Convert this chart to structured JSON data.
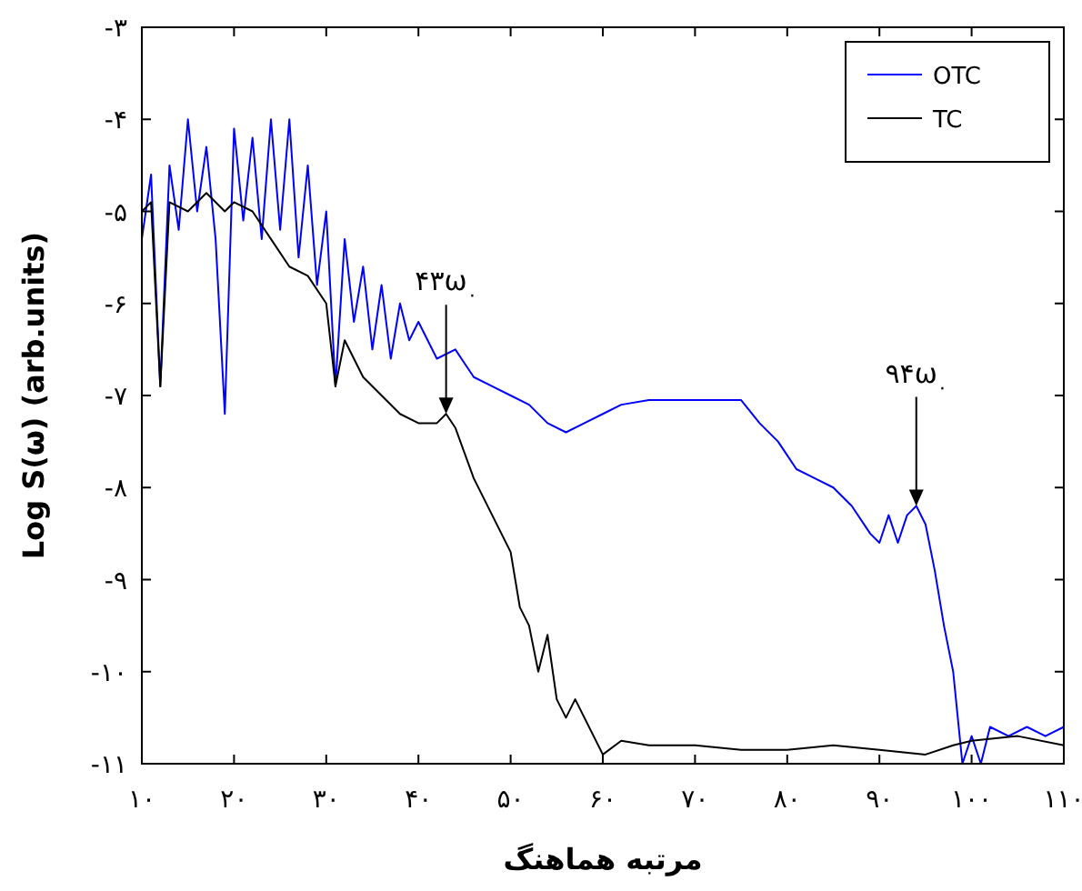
{
  "chart_data": {
    "type": "line",
    "xlabel": "مرتبه هماهنگ",
    "ylabel": "Log S(ω) (arb.units)",
    "xlim": [
      10,
      110
    ],
    "ylim": [
      -11,
      -3
    ],
    "xticks": [
      {
        "value": 10,
        "label": "۱۰"
      },
      {
        "value": 20,
        "label": "۲۰"
      },
      {
        "value": 30,
        "label": "۳۰"
      },
      {
        "value": 40,
        "label": "۴۰"
      },
      {
        "value": 50,
        "label": "۵۰"
      },
      {
        "value": 60,
        "label": "۶۰"
      },
      {
        "value": 70,
        "label": "۷۰"
      },
      {
        "value": 80,
        "label": "۸۰"
      },
      {
        "value": 90,
        "label": "۹۰"
      },
      {
        "value": 100,
        "label": "۱۰۰"
      },
      {
        "value": 110,
        "label": "۱۱۰"
      }
    ],
    "yticks": [
      {
        "value": -3,
        "label": "-۳"
      },
      {
        "value": -4,
        "label": "-۴"
      },
      {
        "value": -5,
        "label": "-۵"
      },
      {
        "value": -6,
        "label": "-۶"
      },
      {
        "value": -7,
        "label": "-۷"
      },
      {
        "value": -8,
        "label": "-۸"
      },
      {
        "value": -9,
        "label": "-۹"
      },
      {
        "value": -10,
        "label": "-۱۰"
      },
      {
        "value": -11,
        "label": "-۱۱"
      }
    ],
    "grid": false,
    "legend": "top right",
    "marker": "none",
    "line_style": "solid",
    "series": [
      {
        "name": "OTC",
        "color": "#0000ff",
        "x": [
          10,
          11,
          12,
          13,
          14,
          15,
          16,
          17,
          18,
          19,
          20,
          21,
          22,
          23,
          24,
          25,
          26,
          27,
          28,
          29,
          30,
          31,
          32,
          33,
          34,
          35,
          36,
          37,
          38,
          39,
          40,
          42,
          44,
          46,
          48,
          50,
          52,
          54,
          56,
          58,
          60,
          62,
          65,
          70,
          75,
          77,
          79,
          81,
          83,
          85,
          87,
          89,
          90,
          91,
          92,
          93,
          94,
          95,
          96,
          97,
          98,
          98.5,
          99,
          100,
          101,
          102,
          104,
          106,
          108,
          110
        ],
        "values": [
          -5.3,
          -4.6,
          -6.9,
          -4.5,
          -5.2,
          -4.0,
          -5.0,
          -4.3,
          -5.3,
          -7.2,
          -4.1,
          -5.1,
          -4.2,
          -5.3,
          -4.0,
          -5.2,
          -4.0,
          -5.5,
          -4.5,
          -5.8,
          -5.0,
          -6.9,
          -5.3,
          -6.2,
          -5.6,
          -6.5,
          -5.8,
          -6.6,
          -6.0,
          -6.4,
          -6.2,
          -6.6,
          -6.5,
          -6.8,
          -6.9,
          -7.0,
          -7.1,
          -7.3,
          -7.4,
          -7.3,
          -7.2,
          -7.1,
          -7.05,
          -7.05,
          -7.05,
          -7.3,
          -7.5,
          -7.8,
          -7.9,
          -8.0,
          -8.2,
          -8.5,
          -8.6,
          -8.3,
          -8.6,
          -8.3,
          -8.2,
          -8.4,
          -8.9,
          -9.5,
          -10.0,
          -10.5,
          -11.0,
          -10.7,
          -11.0,
          -10.6,
          -10.7,
          -10.6,
          -10.7,
          -10.6
        ]
      },
      {
        "name": "TC",
        "color": "#000000",
        "x": [
          10,
          11,
          12,
          13,
          15,
          17,
          19,
          20,
          22,
          24,
          26,
          28,
          30,
          31,
          32,
          34,
          36,
          38,
          40,
          42,
          43,
          44,
          46,
          48,
          50,
          51,
          52,
          53,
          54,
          55,
          56,
          57,
          58,
          59,
          60,
          62,
          65,
          70,
          75,
          80,
          85,
          90,
          95,
          98,
          100,
          105,
          110
        ],
        "values": [
          -5.0,
          -4.9,
          -6.9,
          -4.9,
          -5.0,
          -4.8,
          -5.0,
          -4.9,
          -5.0,
          -5.3,
          -5.6,
          -5.7,
          -6.0,
          -6.9,
          -6.4,
          -6.8,
          -7.0,
          -7.2,
          -7.3,
          -7.3,
          -7.2,
          -7.35,
          -7.9,
          -8.3,
          -8.7,
          -9.3,
          -9.5,
          -10.0,
          -9.6,
          -10.3,
          -10.5,
          -10.3,
          -10.5,
          -10.7,
          -10.9,
          -10.75,
          -10.8,
          -10.8,
          -10.85,
          -10.85,
          -10.8,
          -10.85,
          -10.9,
          -10.8,
          -10.75,
          -10.7,
          -10.8
        ]
      }
    ],
    "annotations": [
      {
        "text": "۴۳ω$_{۰}$",
        "x": 43,
        "y": -7.2
      },
      {
        "text": "۹۴ω$_{۰}$",
        "x": 94,
        "y": -8.2
      }
    ]
  }
}
